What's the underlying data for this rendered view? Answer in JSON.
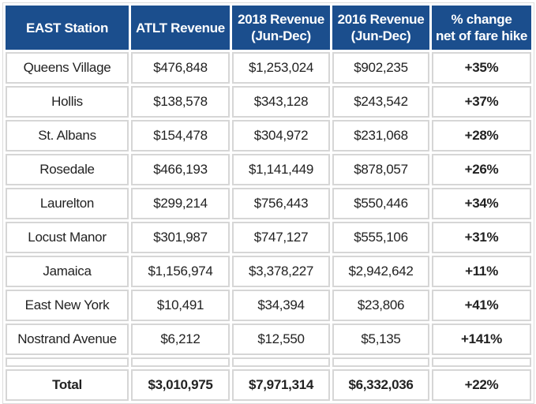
{
  "headers": [
    {
      "line1": "EAST Station",
      "line2": ""
    },
    {
      "line1": "ATLT Revenue",
      "line2": ""
    },
    {
      "line1": "2018 Revenue",
      "line2": "(Jun-Dec)"
    },
    {
      "line1": "2016 Revenue",
      "line2": "(Jun-Dec)"
    },
    {
      "line1": "% change",
      "line2": "net of fare hike"
    }
  ],
  "rows": [
    {
      "station": "Queens Village",
      "atlt": "$476,848",
      "rev2018": "$1,253,024",
      "rev2016": "$902,235",
      "change": "+35%"
    },
    {
      "station": "Hollis",
      "atlt": "$138,578",
      "rev2018": "$343,128",
      "rev2016": "$243,542",
      "change": "+37%"
    },
    {
      "station": "St. Albans",
      "atlt": "$154,478",
      "rev2018": "$304,972",
      "rev2016": "$231,068",
      "change": "+28%"
    },
    {
      "station": "Rosedale",
      "atlt": "$466,193",
      "rev2018": "$1,141,449",
      "rev2016": "$878,057",
      "change": "+26%"
    },
    {
      "station": "Laurelton",
      "atlt": "$299,214",
      "rev2018": "$756,443",
      "rev2016": "$550,446",
      "change": "+34%"
    },
    {
      "station": "Locust Manor",
      "atlt": "$301,987",
      "rev2018": "$747,127",
      "rev2016": "$555,106",
      "change": "+31%"
    },
    {
      "station": "Jamaica",
      "atlt": "$1,156,974",
      "rev2018": "$3,378,227",
      "rev2016": "$2,942,642",
      "change": "+11%"
    },
    {
      "station": "East New York",
      "atlt": "$10,491",
      "rev2018": "$34,394",
      "rev2016": "$23,806",
      "change": "+41%"
    },
    {
      "station": "Nostrand Avenue",
      "atlt": "$6,212",
      "rev2018": "$12,550",
      "rev2016": "$5,135",
      "change": "+141%"
    }
  ],
  "total": {
    "station": "Total",
    "atlt": "$3,010,975",
    "rev2018": "$7,971,314",
    "rev2016": "$6,332,036",
    "change": "+22%"
  }
}
